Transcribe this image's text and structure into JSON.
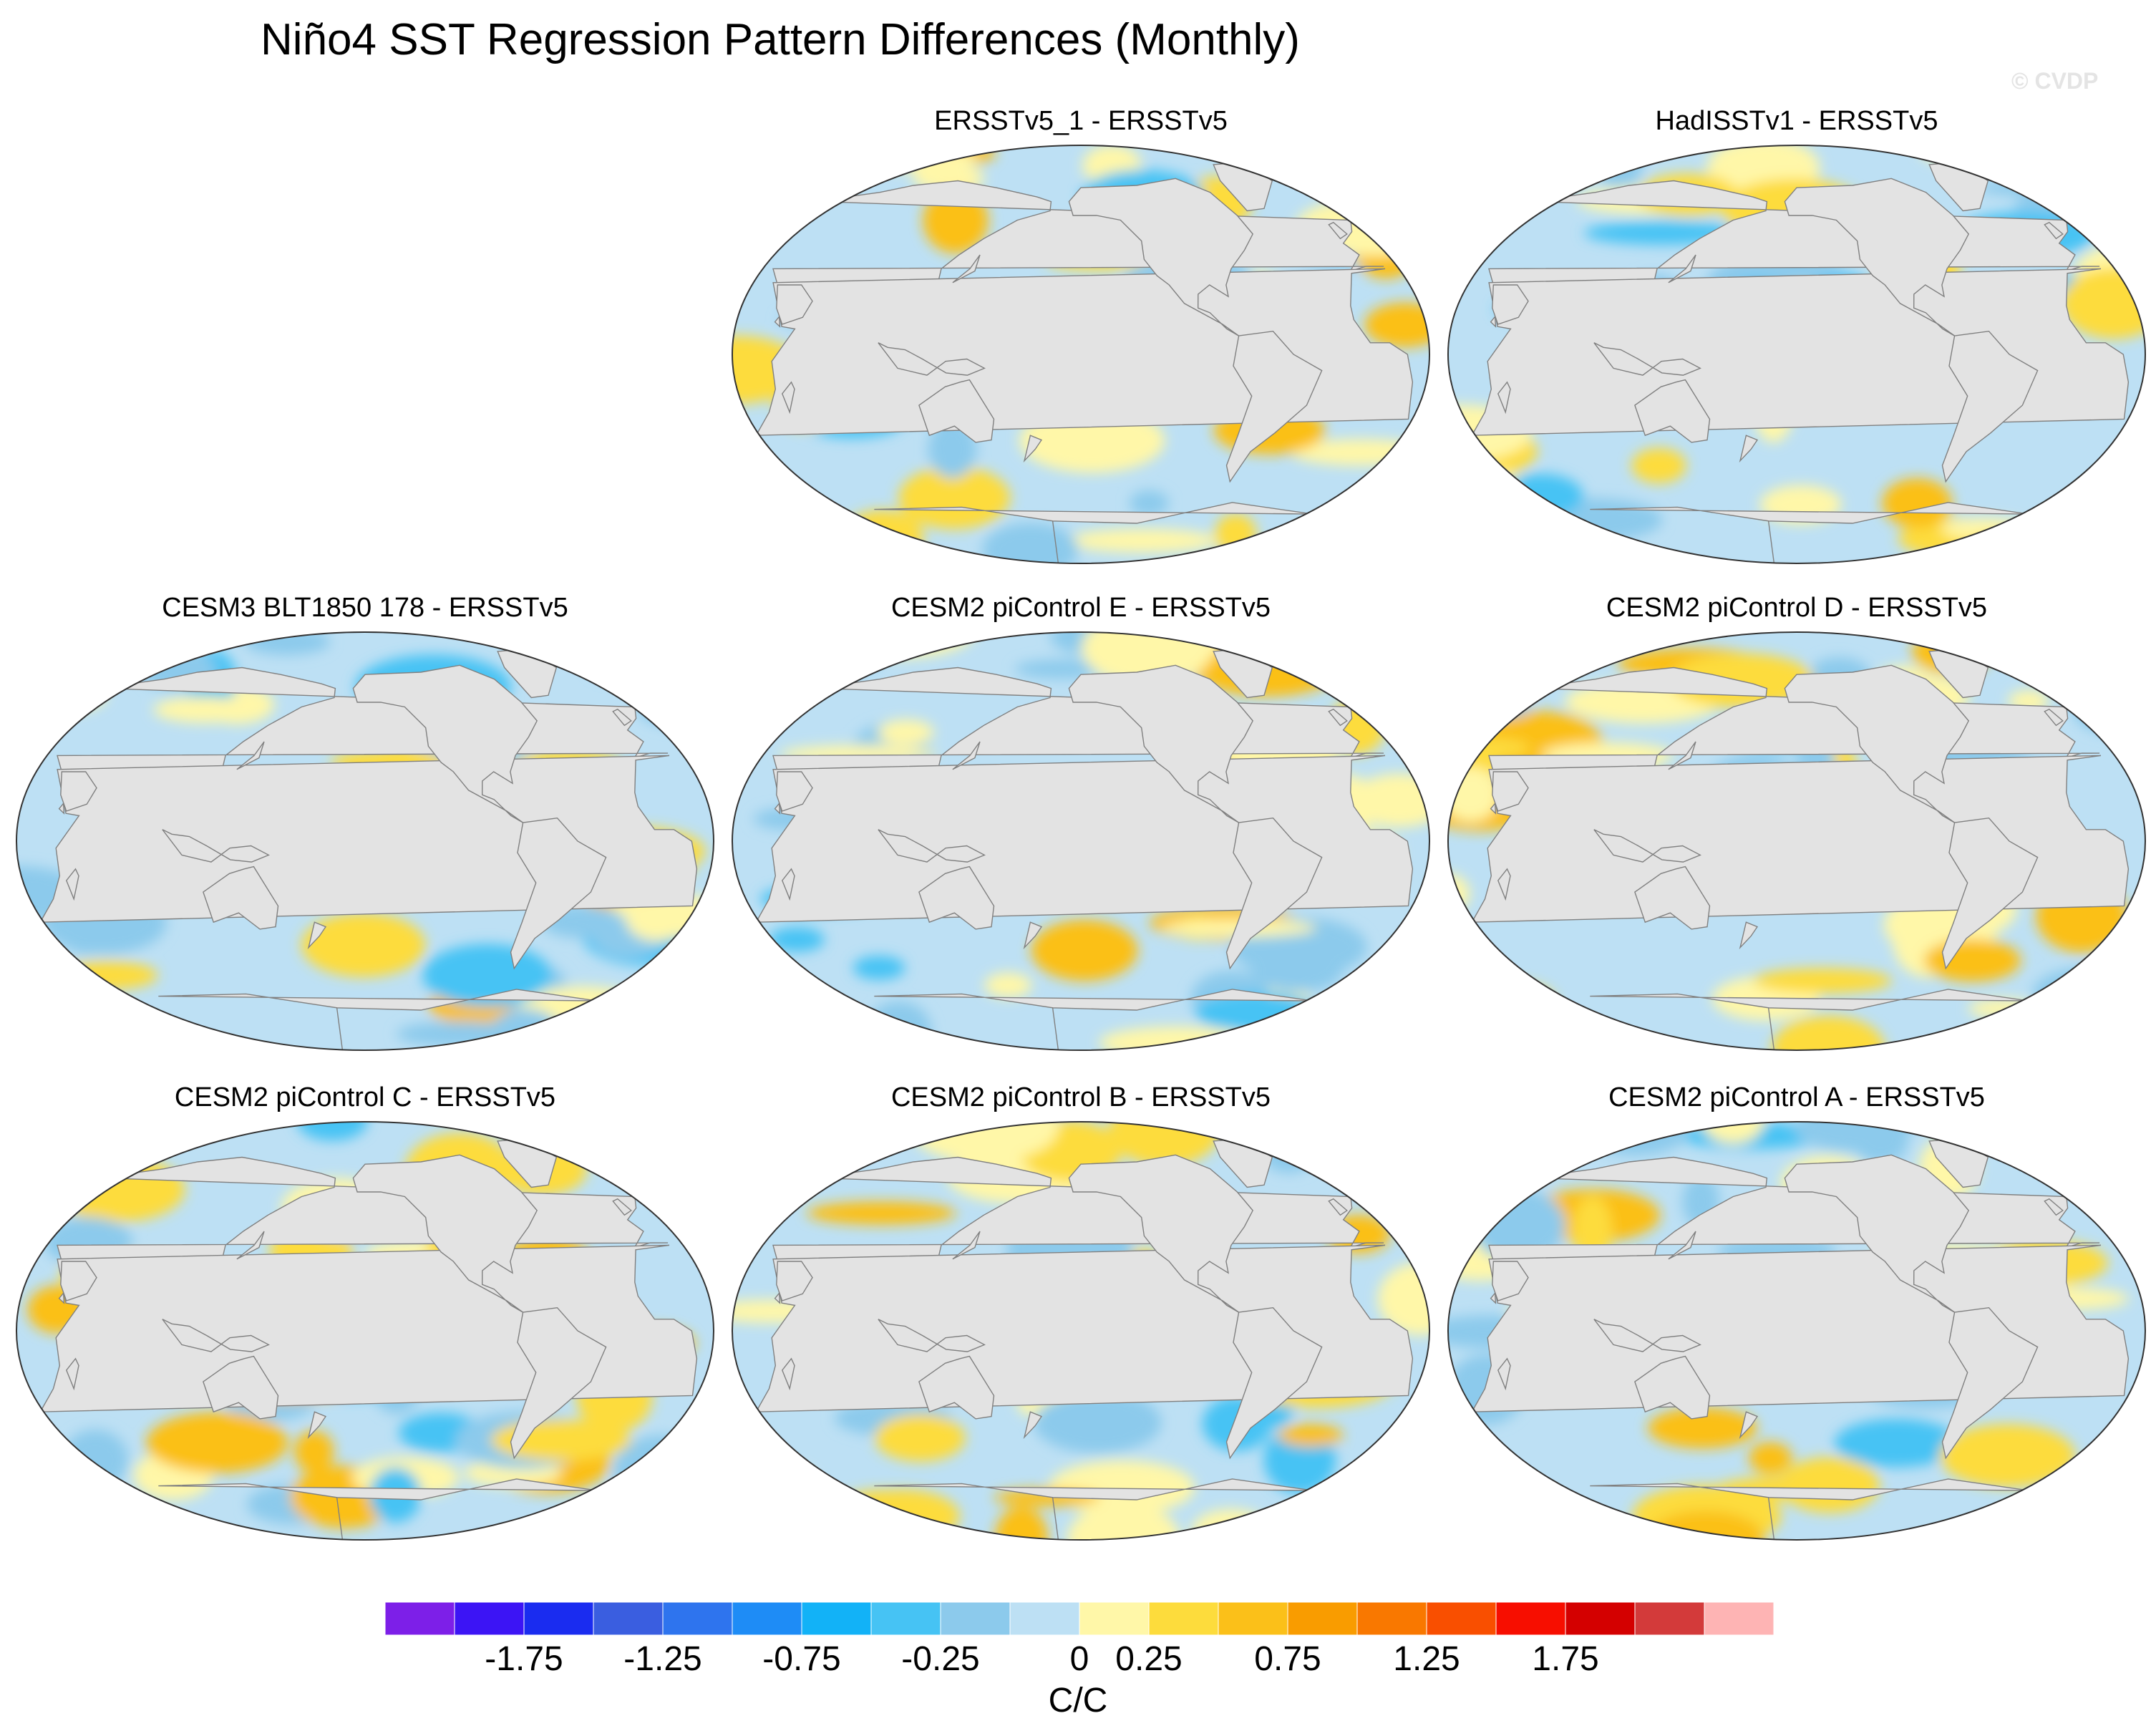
{
  "chart_data": {
    "type": "map-panels",
    "title": "Niño4 SST Regression Pattern Differences (Monthly)",
    "watermark": "© CVDP",
    "panels": [
      {
        "title": "ERSSTv5_1 - ERSSTv5",
        "variant": 0
      },
      {
        "title": "HadISSTv1 - ERSSTv5",
        "variant": 1
      },
      {
        "title": "CESM3 BLT1850 178 - ERSSTv5",
        "variant": 2
      },
      {
        "title": "CESM2 piControl E - ERSSTv5",
        "variant": 3
      },
      {
        "title": "CESM2 piControl D - ERSSTv5",
        "variant": 4
      },
      {
        "title": "CESM2 piControl C - ERSSTv5",
        "variant": 5
      },
      {
        "title": "CESM2 piControl B - ERSSTv5",
        "variant": 6
      },
      {
        "title": "CESM2 piControl A - ERSSTv5",
        "variant": 7
      }
    ],
    "colorbar": {
      "colors": [
        "#7d1fe8",
        "#3c14f5",
        "#1a2cf0",
        "#3a5ee0",
        "#2e74ee",
        "#1e8cf6",
        "#12b2f7",
        "#46c3f4",
        "#8ccaec",
        "#bde0f4",
        "#fff7a8",
        "#fddc3c",
        "#fbc019",
        "#f99c00",
        "#f97800",
        "#f94f00",
        "#f70e00",
        "#d40000",
        "#d33a3a",
        "#feb4b4"
      ],
      "levels": [
        "-1.75",
        "-1.25",
        "-0.75",
        "-0.25",
        "0",
        "0.25",
        "0.75",
        "1.25",
        "1.75"
      ],
      "units": "C/C"
    }
  }
}
